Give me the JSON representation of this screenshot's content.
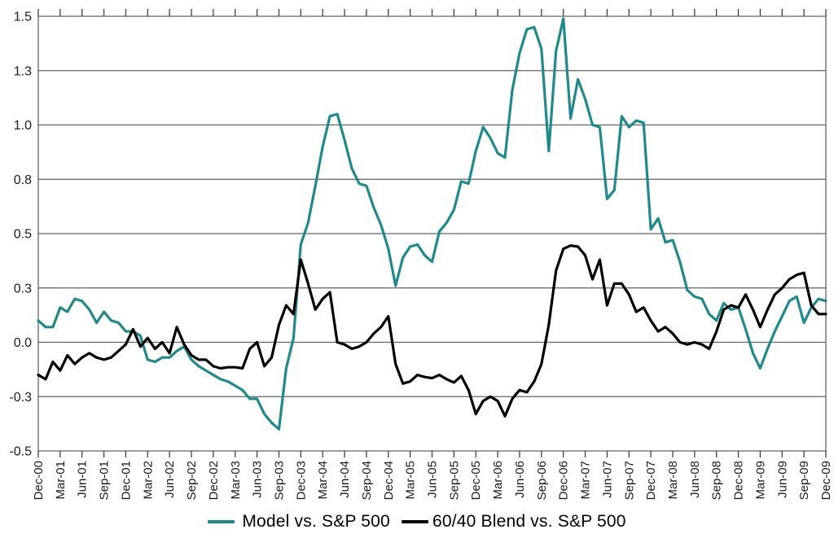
{
  "chart_data": {
    "type": "line",
    "title": "",
    "xlabel": "",
    "ylabel": "",
    "ylim": [
      -0.5,
      1.5
    ],
    "grid": "horizontal",
    "legend_position": "bottom",
    "x_unit": "monthly points, quarterly tick labels",
    "y_ticks": [
      {
        "v": 1.5,
        "label": "1.5"
      },
      {
        "v": 1.25,
        "label": "1.3"
      },
      {
        "v": 1.0,
        "label": "1.0"
      },
      {
        "v": 0.75,
        "label": "0.8"
      },
      {
        "v": 0.5,
        "label": "0.5"
      },
      {
        "v": 0.25,
        "label": "0.3"
      },
      {
        "v": 0.0,
        "label": "0.0"
      },
      {
        "v": -0.25,
        "label": "-0.3"
      },
      {
        "v": -0.5,
        "label": "-0.5"
      }
    ],
    "x_tick_labels": [
      "Dec-00",
      "Mar-01",
      "Jun-01",
      "Sep-01",
      "Dec-01",
      "Mar-02",
      "Jun-02",
      "Sep-02",
      "Dec-02",
      "Mar-03",
      "Jun-03",
      "Sep-03",
      "Dec-03",
      "Mar-04",
      "Jun-04",
      "Sep-04",
      "Dec-04",
      "Mar-05",
      "Jun-05",
      "Sep-05",
      "Dec-05",
      "Mar-06",
      "Jun-06",
      "Sep-06",
      "Dec-06",
      "Mar-07",
      "Jun-07",
      "Sep-07",
      "Dec-07",
      "Mar-08",
      "Jun-08",
      "Sep-08",
      "Dec-08",
      "Mar-09",
      "Jun-09",
      "Sep-09",
      "Dec-09"
    ],
    "series": [
      {
        "name": "Model vs. S&P 500",
        "color": "#20898d",
        "values": [
          0.1,
          0.07,
          0.07,
          0.16,
          0.14,
          0.2,
          0.19,
          0.15,
          0.09,
          0.14,
          0.1,
          0.09,
          0.05,
          0.05,
          0.03,
          -0.08,
          -0.09,
          -0.07,
          -0.07,
          -0.04,
          -0.02,
          -0.08,
          -0.11,
          -0.13,
          -0.15,
          -0.17,
          -0.18,
          -0.2,
          -0.22,
          -0.26,
          -0.26,
          -0.33,
          -0.37,
          -0.4,
          -0.12,
          0.02,
          0.45,
          0.55,
          0.72,
          0.9,
          1.04,
          1.05,
          0.93,
          0.8,
          0.73,
          0.72,
          0.62,
          0.54,
          0.43,
          0.26,
          0.39,
          0.44,
          0.45,
          0.4,
          0.37,
          0.51,
          0.55,
          0.61,
          0.74,
          0.73,
          0.88,
          0.99,
          0.94,
          0.87,
          0.85,
          1.16,
          1.33,
          1.44,
          1.45,
          1.35,
          0.88,
          1.34,
          1.49,
          1.03,
          1.21,
          1.12,
          1.0,
          0.99,
          0.66,
          0.7,
          1.04,
          0.99,
          1.02,
          1.01,
          0.52,
          0.57,
          0.46,
          0.47,
          0.37,
          0.24,
          0.21,
          0.2,
          0.13,
          0.1,
          0.18,
          0.15,
          0.16,
          0.06,
          -0.05,
          -0.12,
          -0.03,
          0.05,
          0.12,
          0.19,
          0.21,
          0.09,
          0.16,
          0.2,
          0.19
        ]
      },
      {
        "name": "60/40 Blend vs. S&P 500",
        "color": "#000000",
        "values": [
          -0.15,
          -0.17,
          -0.09,
          -0.13,
          -0.06,
          -0.1,
          -0.07,
          -0.05,
          -0.07,
          -0.08,
          -0.07,
          -0.04,
          -0.01,
          0.06,
          -0.02,
          0.02,
          -0.03,
          0.0,
          -0.05,
          0.07,
          -0.01,
          -0.06,
          -0.08,
          -0.08,
          -0.11,
          -0.12,
          -0.115,
          -0.115,
          -0.12,
          -0.03,
          0.0,
          -0.11,
          -0.07,
          0.08,
          0.17,
          0.13,
          0.38,
          0.27,
          0.15,
          0.2,
          0.23,
          0.0,
          -0.01,
          -0.03,
          -0.02,
          0.0,
          0.04,
          0.07,
          0.12,
          -0.1,
          -0.19,
          -0.18,
          -0.15,
          -0.16,
          -0.165,
          -0.15,
          -0.17,
          -0.185,
          -0.155,
          -0.22,
          -0.33,
          -0.27,
          -0.25,
          -0.27,
          -0.34,
          -0.26,
          -0.22,
          -0.23,
          -0.18,
          -0.1,
          0.08,
          0.33,
          0.43,
          0.445,
          0.44,
          0.4,
          0.29,
          0.38,
          0.17,
          0.27,
          0.27,
          0.22,
          0.14,
          0.16,
          0.1,
          0.05,
          0.07,
          0.04,
          0.0,
          -0.01,
          0.0,
          -0.01,
          -0.03,
          0.05,
          0.15,
          0.17,
          0.16,
          0.22,
          0.15,
          0.07,
          0.15,
          0.22,
          0.25,
          0.29,
          0.31,
          0.32,
          0.17,
          0.13,
          0.13
        ]
      }
    ],
    "style": {
      "grid_color": "#636363",
      "axis_color": "#636363",
      "tick_color": "#404040",
      "label_color": "#1a1a1a",
      "background": "#ffffff"
    }
  },
  "legend": {
    "items": [
      {
        "label": "Model vs. S&P 500"
      },
      {
        "label": "60/40 Blend vs. S&P 500"
      }
    ]
  }
}
